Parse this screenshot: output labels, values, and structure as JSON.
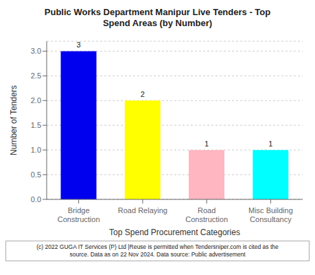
{
  "chart_data": {
    "type": "bar",
    "title": "Public Works Department Manipur Live Tenders - Top\nSpend Areas (by Number)",
    "categories": [
      "Bridge\nConstruction",
      "Road Relaying",
      "Road\nConstruction",
      "Misc Building\nConsultancy"
    ],
    "values": [
      3,
      2,
      1,
      1
    ],
    "colors": [
      "#0000ee",
      "#ffff00",
      "#ffb6c1",
      "#00ffff"
    ],
    "xlabel": "Top Spend Procurement Categories",
    "ylabel": "Number of Tenders",
    "ylim": [
      0,
      3.2
    ],
    "yticks": [
      {
        "value": 0.0,
        "label": "0.0"
      },
      {
        "value": 0.5,
        "label": "0.5"
      },
      {
        "value": 1.0,
        "label": "1.0"
      },
      {
        "value": 1.5,
        "label": "1.5"
      },
      {
        "value": 2.0,
        "label": "2.0"
      },
      {
        "value": 2.5,
        "label": "2.5"
      },
      {
        "value": 3.0,
        "label": "3.0"
      }
    ],
    "grid": true,
    "data_labels": true,
    "annotations": [
      "(c) 2022 GUGA IT Services (P) Ltd |Reuse is permitted when Tendersniper.com is cited as the\nsource. Data as on 22 Nov 2024. Data source: Public advertisement"
    ]
  }
}
